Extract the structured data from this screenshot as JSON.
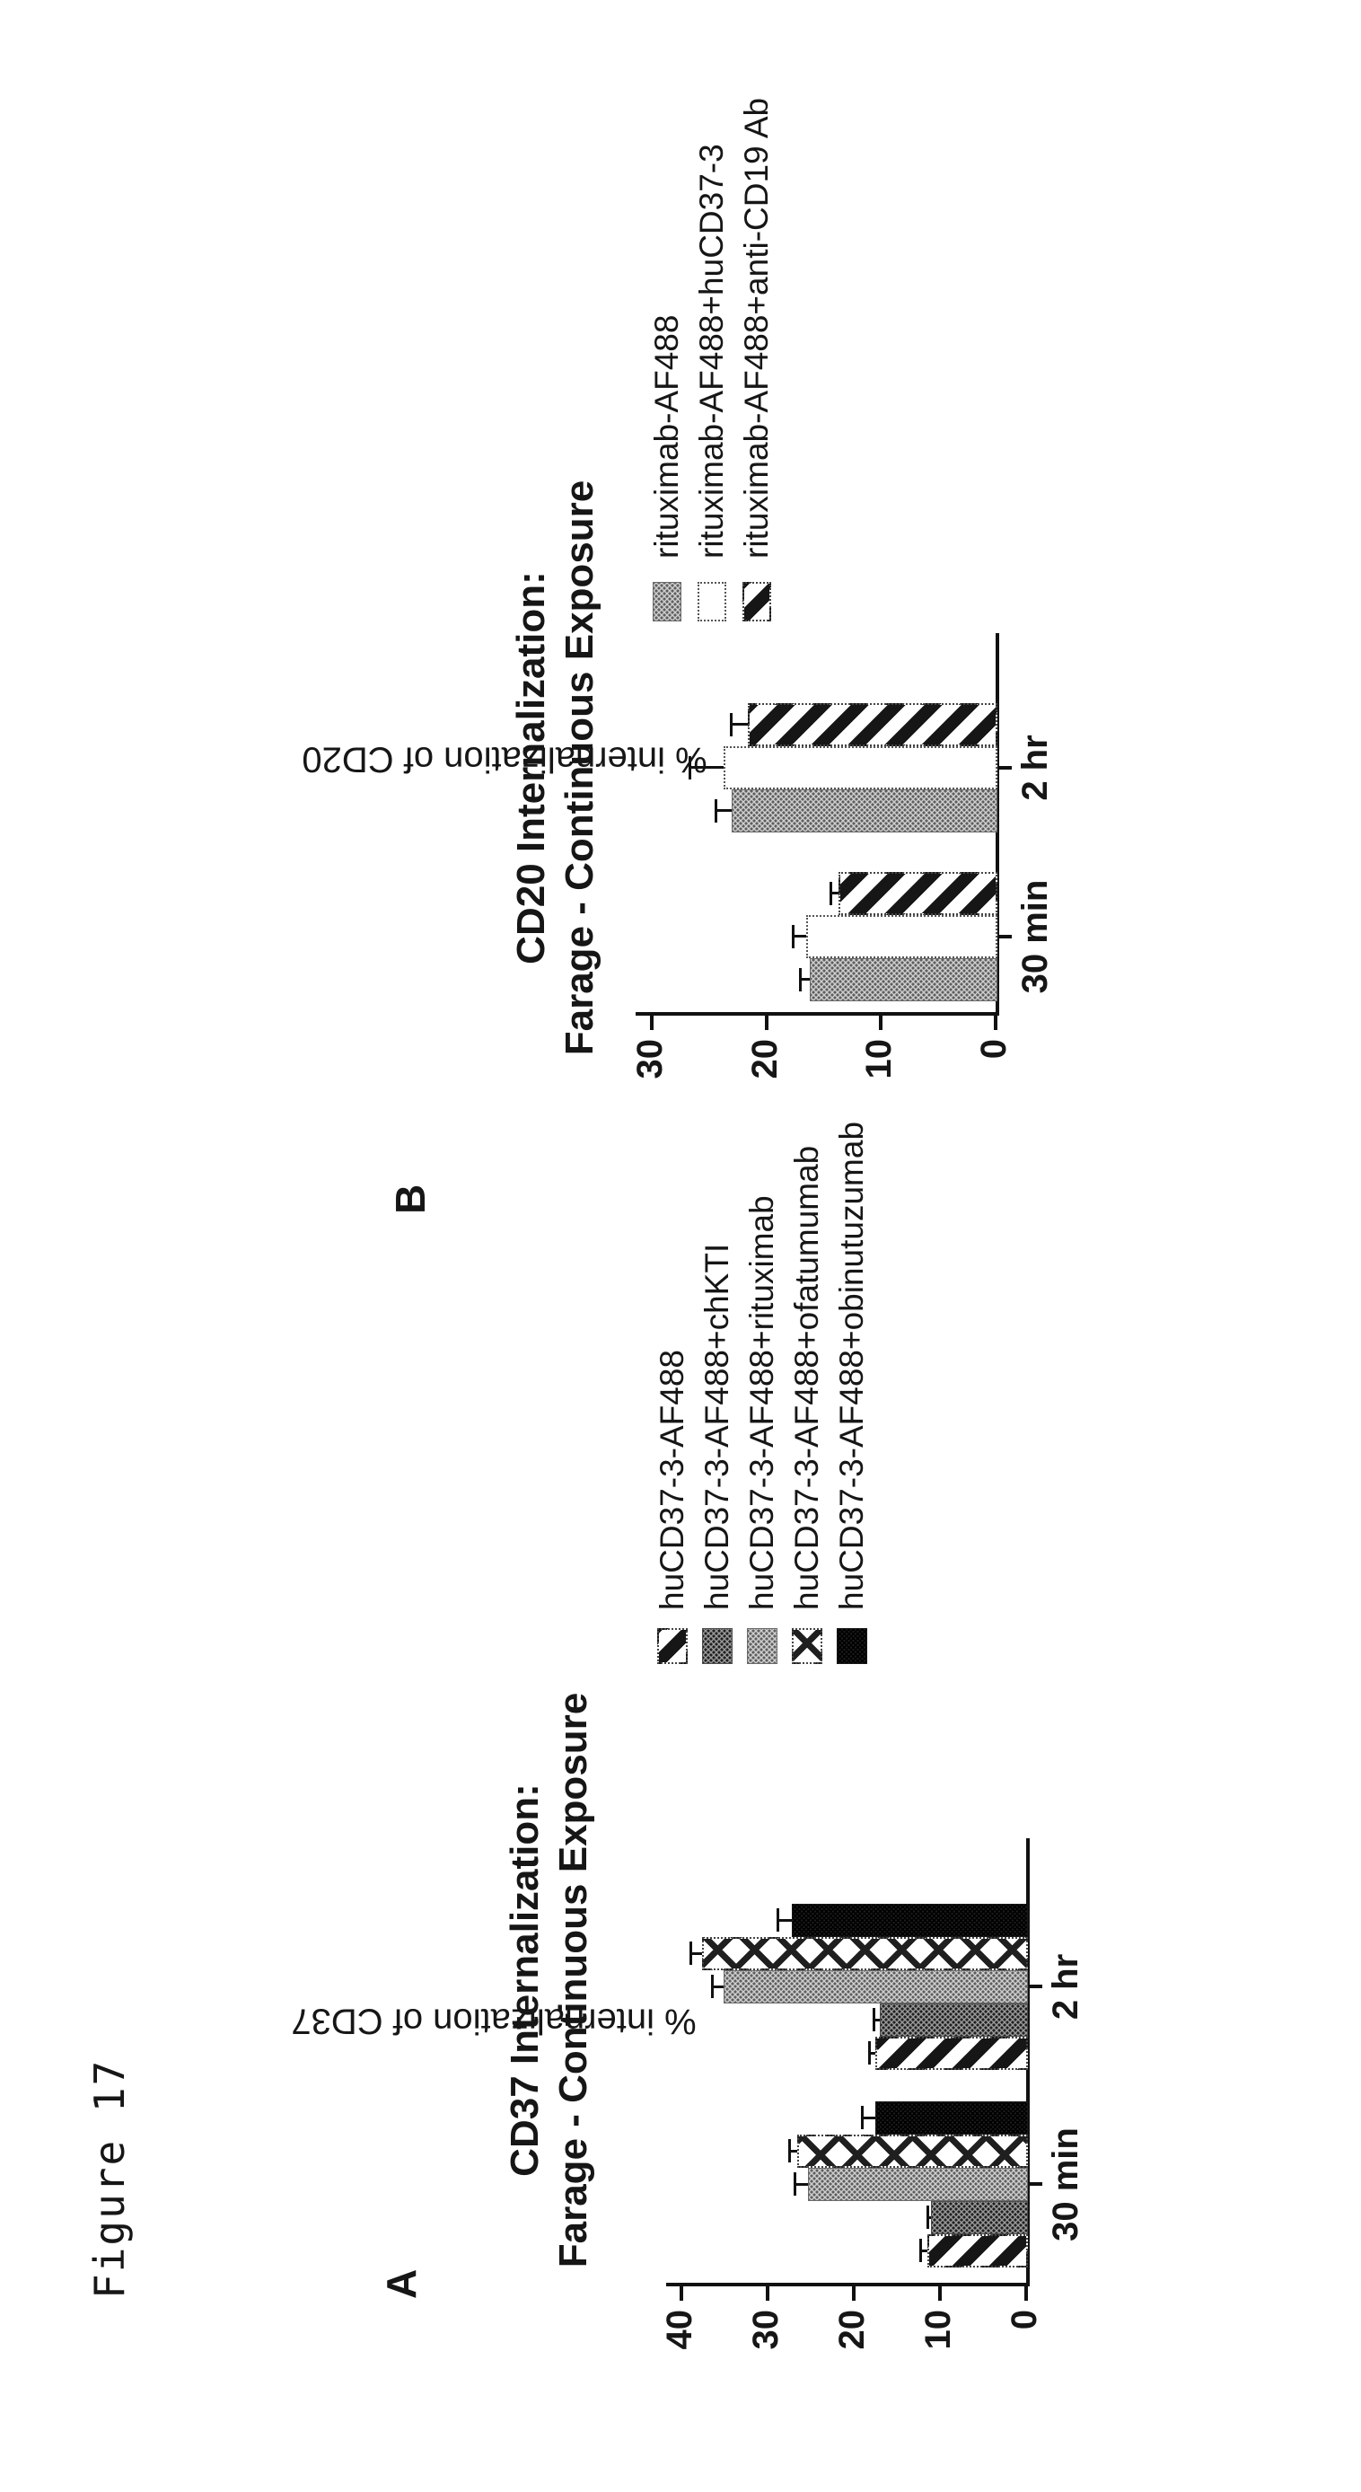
{
  "figure_label": "Figure 17",
  "colors": {
    "ink": "#161616",
    "bar_gray": "#cfcfcf",
    "bar_dark_gray": "#9a9a9a",
    "bar_black": "#3a3a3a",
    "background": "#ffffff"
  },
  "chart_data": [
    {
      "panel": "A",
      "type": "bar",
      "title_line1": "CD37 Internalization:",
      "title_line2": "Farage - Continuous Exposure",
      "ylabel": "% internalization of CD37",
      "ylim": [
        0,
        40
      ],
      "yticks": [
        0,
        10,
        20,
        30,
        40
      ],
      "grid": false,
      "legend_position": "top-right",
      "categories": [
        "30 min",
        "2 hr"
      ],
      "series": [
        {
          "name": "huCD37-3-AF488",
          "pattern": "diagonal-stripes",
          "values": [
            11.5,
            17.5
          ],
          "errors": [
            0.8,
            0.7
          ]
        },
        {
          "name": "huCD37-3-AF488+chKTI",
          "pattern": "dark-stipple",
          "values": [
            11.0,
            17.0
          ],
          "errors": [
            0.5,
            0.7
          ]
        },
        {
          "name": "huCD37-3-AF488+rituximab",
          "pattern": "gray-stipple",
          "values": [
            25.3,
            35.1
          ],
          "errors": [
            1.6,
            1.4
          ]
        },
        {
          "name": "huCD37-3-AF488+ofatumumab",
          "pattern": "crosshatch",
          "values": [
            26.6,
            37.6
          ],
          "errors": [
            0.9,
            1.4
          ]
        },
        {
          "name": "huCD37-3-AF488+obinutuzumab",
          "pattern": "black-stipple",
          "values": [
            17.5,
            27.2
          ],
          "errors": [
            1.6,
            1.7
          ]
        }
      ]
    },
    {
      "panel": "B",
      "type": "bar",
      "title_line1": "CD20 Internalization:",
      "title_line2": "Farage - Continuous Exposure",
      "ylabel": "% internalization of CD20",
      "ylim": [
        0,
        30
      ],
      "yticks": [
        0,
        10,
        20,
        30
      ],
      "grid": false,
      "legend_position": "top-right",
      "categories": [
        "30 min",
        "2 hr"
      ],
      "series": [
        {
          "name": "rituximab-AF488",
          "pattern": "gray-stipple",
          "values": [
            16.2,
            23.0
          ],
          "errors": [
            0.9,
            1.4
          ]
        },
        {
          "name": "rituximab-AF488+huCD37-3",
          "pattern": "white-dotted",
          "values": [
            16.5,
            23.7
          ],
          "errors": [
            1.2,
            3.0
          ]
        },
        {
          "name": "rituximab-AF488+anti-CD19 Ab",
          "pattern": "diagonal-stripes",
          "values": [
            13.7,
            21.6
          ],
          "errors": [
            0.7,
            1.5
          ]
        }
      ]
    }
  ]
}
